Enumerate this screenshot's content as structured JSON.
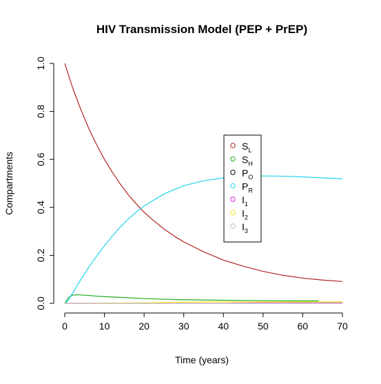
{
  "chart_data": {
    "type": "line",
    "title": "HIV Transmission Model (PEP + PrEP)",
    "xlabel": "Time (years)",
    "ylabel": "Compartments",
    "xlim": [
      0,
      70
    ],
    "ylim": [
      0,
      1
    ],
    "xticks": [
      0,
      10,
      20,
      30,
      40,
      50,
      60,
      70
    ],
    "yticks": [
      0.0,
      0.2,
      0.4,
      0.6,
      0.8,
      1.0
    ],
    "ytick_labels": [
      "0.0",
      "0.2",
      "0.4",
      "0.6",
      "0.8",
      "1.0"
    ],
    "grid": false,
    "legend_placement": "center-right",
    "series": [
      {
        "name": "S",
        "subscript": "L",
        "color": "#b22222",
        "x": [
          0,
          2,
          4,
          6,
          8,
          10,
          12,
          14,
          16,
          18,
          20,
          22,
          25,
          28,
          30,
          35,
          40,
          45,
          50,
          55,
          60,
          65,
          70
        ],
        "y": [
          1.0,
          0.898,
          0.81,
          0.731,
          0.662,
          0.6,
          0.546,
          0.497,
          0.453,
          0.415,
          0.38,
          0.35,
          0.31,
          0.276,
          0.256,
          0.215,
          0.18,
          0.155,
          0.133,
          0.117,
          0.105,
          0.097,
          0.091
        ]
      },
      {
        "name": "S",
        "subscript": "H",
        "color": "#1faa1f",
        "x": [
          0,
          1,
          2,
          3,
          4,
          6,
          8,
          10,
          15,
          20,
          25,
          30,
          40,
          50,
          60,
          64
        ],
        "y": [
          0.0,
          0.025,
          0.034,
          0.036,
          0.035,
          0.033,
          0.03,
          0.028,
          0.024,
          0.02,
          0.017,
          0.015,
          0.013,
          0.011,
          0.01,
          0.01
        ]
      },
      {
        "name": "P",
        "subscript": "O",
        "color": "#000000",
        "x": [],
        "y": []
      },
      {
        "name": "P",
        "subscript": "R",
        "color": "#22d3ee",
        "x": [
          0,
          0.5,
          1,
          2,
          3,
          4,
          6,
          8,
          10,
          12,
          14,
          16,
          18,
          20,
          25,
          30,
          35,
          40,
          45,
          50,
          55,
          60,
          65,
          70
        ],
        "y": [
          0.0,
          0.006,
          0.016,
          0.043,
          0.071,
          0.098,
          0.149,
          0.196,
          0.24,
          0.281,
          0.318,
          0.351,
          0.38,
          0.406,
          0.456,
          0.49,
          0.511,
          0.523,
          0.529,
          0.531,
          0.53,
          0.527,
          0.523,
          0.519
        ]
      },
      {
        "name": "I",
        "subscript": "1",
        "color": "#e020e0",
        "x": [
          0,
          10,
          20,
          30,
          40,
          43,
          50,
          60,
          70
        ],
        "y": [
          0.0,
          0.0,
          0.0,
          0.0,
          0.0,
          0.001,
          0.002,
          0.002,
          0.002
        ]
      },
      {
        "name": "I",
        "subscript": "2",
        "color": "#f5e61a",
        "x": [
          0,
          10,
          20,
          26,
          30,
          40,
          50,
          60,
          70
        ],
        "y": [
          0.0,
          0.001,
          0.002,
          0.004,
          0.005,
          0.006,
          0.006,
          0.006,
          0.006
        ]
      },
      {
        "name": "I",
        "subscript": "3",
        "color": "#bebebe",
        "x": [
          0,
          10,
          20,
          30,
          40,
          50,
          60,
          70
        ],
        "y": [
          0.0,
          0.0,
          0.0,
          0.0,
          0.0,
          0.0,
          0.0,
          0.0
        ]
      }
    ]
  }
}
